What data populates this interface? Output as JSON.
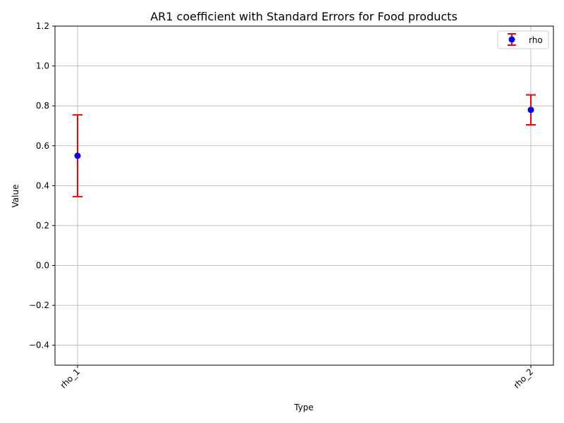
{
  "chart_data": {
    "type": "scatter",
    "title": "AR1 coefficient with Standard Errors for Food products",
    "xlabel": "Type",
    "ylabel": "Value",
    "categories": [
      "rho_1",
      "rho_2"
    ],
    "series": [
      {
        "name": "rho",
        "values": [
          0.55,
          0.78
        ],
        "errors": [
          0.205,
          0.075
        ],
        "marker_color": "#0000ff",
        "error_color": "#ff0000"
      }
    ],
    "ylim": [
      -0.5,
      1.2
    ],
    "yticks": [
      -0.4,
      -0.2,
      0.0,
      0.2,
      0.4,
      0.6,
      0.8,
      1.0,
      1.2
    ],
    "ytick_labels": [
      "−0.4",
      "−0.2",
      "0.0",
      "0.2",
      "0.4",
      "0.6",
      "0.8",
      "1.0",
      "1.2"
    ],
    "grid": true,
    "legend_position": "top-right"
  }
}
